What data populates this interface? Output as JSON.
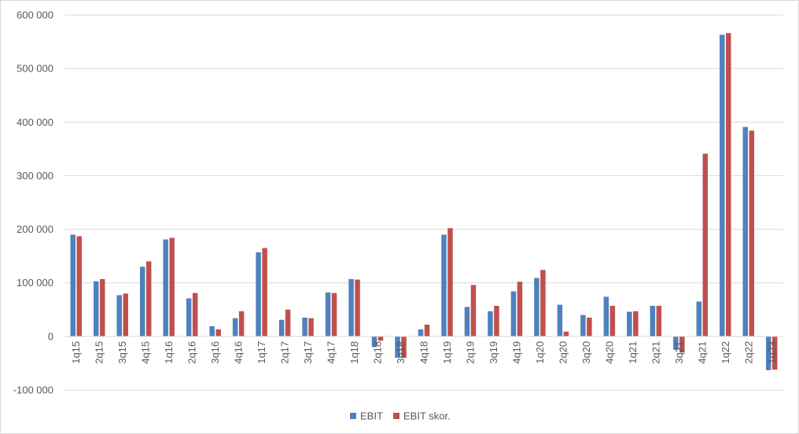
{
  "chart_data": {
    "type": "bar",
    "title": "",
    "xlabel": "",
    "ylabel": "",
    "ylim": [
      -100000,
      600000
    ],
    "yticks": [
      -100000,
      0,
      100000,
      200000,
      300000,
      400000,
      500000,
      600000
    ],
    "ytick_labels": [
      "-100 000",
      "0",
      "100 000",
      "200 000",
      "300 000",
      "400 000",
      "500 000",
      "600 000"
    ],
    "grid": true,
    "legend_position": "bottom",
    "categories": [
      "1q15",
      "2q15",
      "3q15",
      "4q15",
      "1q16",
      "2q16",
      "3q16",
      "4q16",
      "1q17",
      "2q17",
      "3q17",
      "4q17",
      "1q18",
      "2q18",
      "3q18",
      "4q18",
      "1q19",
      "2q19",
      "3q19",
      "4q19",
      "1q20",
      "2q20",
      "3q20",
      "4q20",
      "1q21",
      "2q21",
      "3q21",
      "4q21",
      "1q22",
      "2q22",
      "1q23"
    ],
    "series": [
      {
        "name": "EBIT",
        "color": "#4f81bd",
        "values": [
          190000,
          103000,
          77000,
          130000,
          181000,
          71000,
          19000,
          34000,
          157000,
          31000,
          35000,
          82000,
          107000,
          -20000,
          -40000,
          13000,
          190000,
          55000,
          47000,
          84000,
          109000,
          59000,
          40000,
          74000,
          46000,
          57000,
          -25000,
          65000,
          563000,
          391000,
          -63000
        ]
      },
      {
        "name": "EBIT skor.",
        "color": "#c0504d",
        "values": [
          187000,
          107000,
          80000,
          140000,
          184000,
          81000,
          13000,
          47000,
          165000,
          50000,
          34000,
          81000,
          106000,
          -8000,
          -40000,
          22000,
          202000,
          96000,
          57000,
          102000,
          124000,
          9000,
          35000,
          57000,
          47000,
          57000,
          -30000,
          341000,
          566000,
          384000,
          -62000
        ]
      }
    ]
  }
}
